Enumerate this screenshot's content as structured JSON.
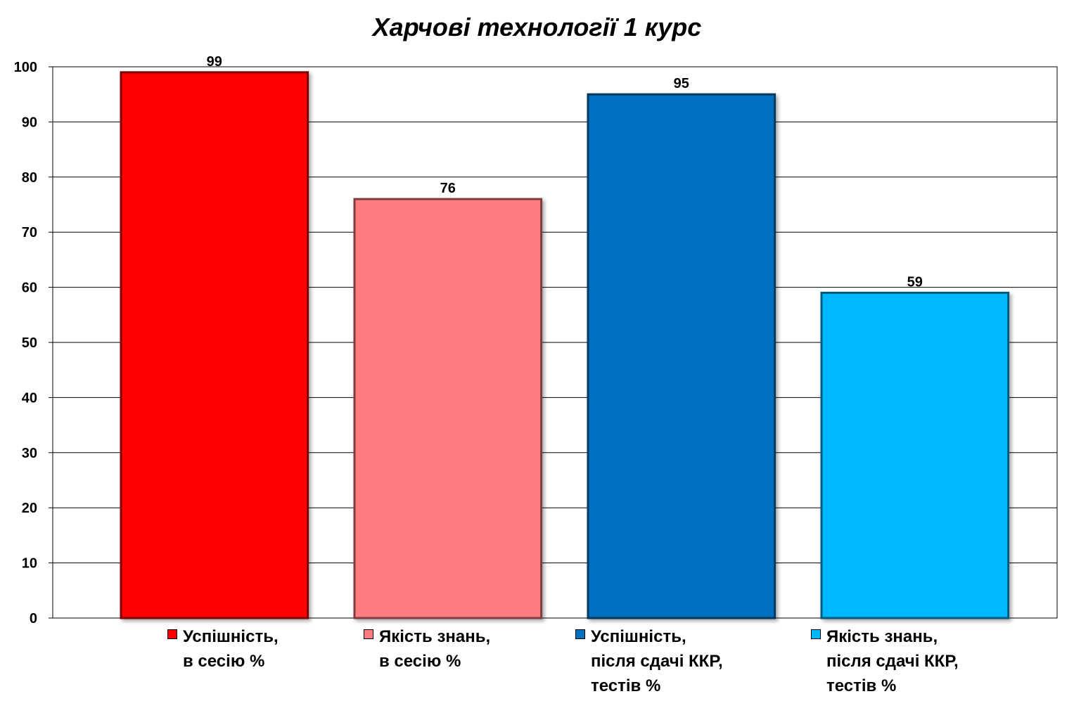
{
  "chart_data": {
    "type": "bar",
    "title": "Харчові технології 1 курс",
    "xlabel": "",
    "ylabel": "",
    "ylim": [
      0,
      100
    ],
    "yticks": [
      "0",
      "10",
      "20",
      "30",
      "40",
      "50",
      "60",
      "70",
      "80",
      "90",
      "100"
    ],
    "grid": true,
    "legend_position": "bottom",
    "series": [
      {
        "name": "Успішність,\nв сесію %",
        "values": [
          99
        ],
        "color": "#FF0000",
        "border": "#7F0000"
      },
      {
        "name": "Якість знань,\nв сесію %",
        "values": [
          76
        ],
        "color": "#FF7C80",
        "border": "#7F3E40"
      },
      {
        "name": "Успішність,\nпісля сдачі ККР,\nтестів %",
        "values": [
          95
        ],
        "color": "#0070C0",
        "border": "#003860"
      },
      {
        "name": "Якість знань,\nпісля сдачі ККР,\nтестів %",
        "values": [
          59
        ],
        "color": "#00B8FF",
        "border": "#005C7F"
      }
    ],
    "data_labels": [
      "99",
      "76",
      "95",
      "59"
    ]
  }
}
